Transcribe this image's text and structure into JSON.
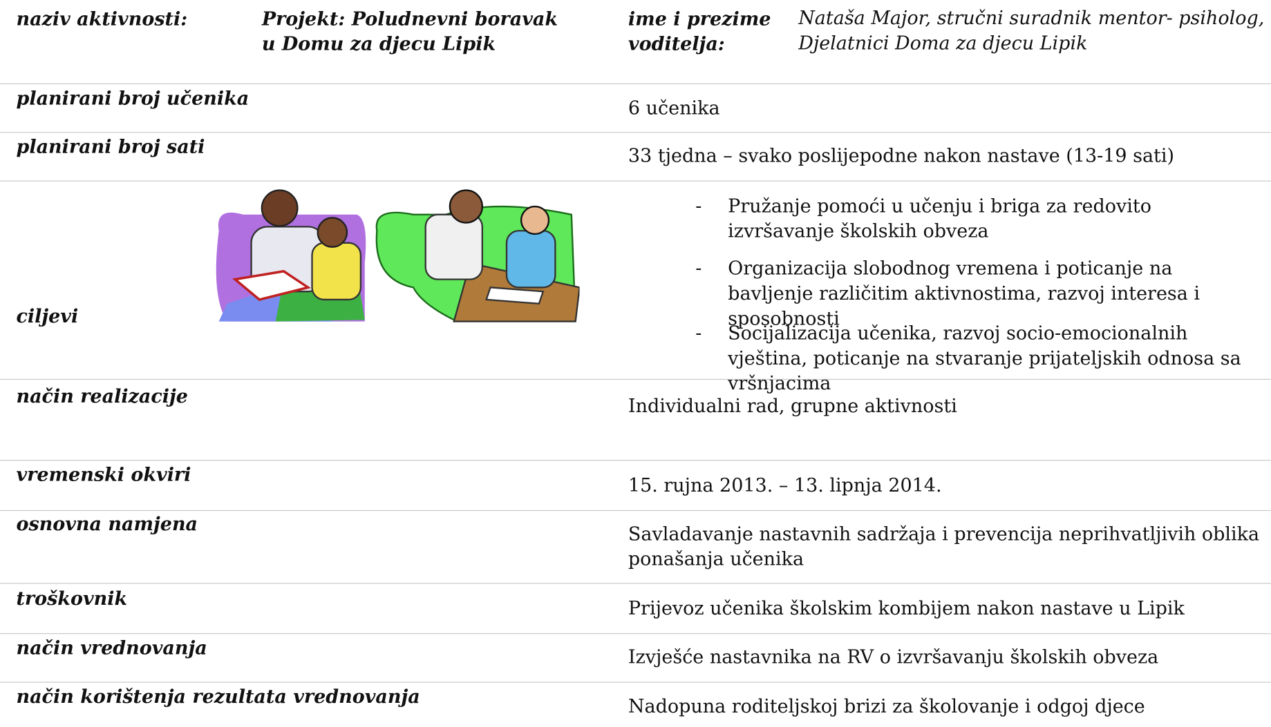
{
  "header": {
    "activity_label": "naziv aktivnosti:",
    "activity_value": "Projekt:  Poludnevni boravak\n u Domu za djecu Lipik",
    "leader_label": "ime i prezime voditelja:",
    "leader_value": "Nataša Major, stručni suradnik mentor- psiholog, Djelatnici Doma za djecu Lipik"
  },
  "rows": [
    {
      "label": "planirani broj učenika",
      "value": "6 učenika"
    },
    {
      "label": "planirani broj sati",
      "value": "33 tjedna – svako poslijepodne nakon nastave (13-19 sati)"
    },
    {
      "label": "ciljevi",
      "items": [
        "Pružanje pomoći u učenju i briga za redovito izvršavanje školskih obveza",
        "Organizacija slobodnog vremena i poticanje na bavljenje različitim aktivnostima, razvoj interesa i sposobnosti",
        "Socijalizacija učenika, razvoj socio-emocionalnih vještina, poticanje na stvaranje prijateljskih odnosa sa vršnjacima"
      ]
    },
    {
      "label": "način realizacije",
      "value": "Individualni rad, grupne aktivnosti"
    },
    {
      "label": "vremenski okviri",
      "value": "15. rujna 2013. – 13. lipnja 2014."
    },
    {
      "label": "osnovna namjena",
      "value": "Savladavanje nastavnih sadržaja i prevencija neprihvatljivih oblika ponašanja učenika"
    },
    {
      "label": "troškovnik",
      "value": "Prijevoz učenika školskim kombijem nakon nastave u Lipik"
    },
    {
      "label": "način vrednovanja",
      "value": "Izvješće nastavnika na RV o izvršavanju školskih obveza"
    },
    {
      "label": "način korištenja rezultata vrednovanja",
      "value": "Nadopuna roditeljskoj brizi za školovanje i odgoj djece"
    }
  ]
}
